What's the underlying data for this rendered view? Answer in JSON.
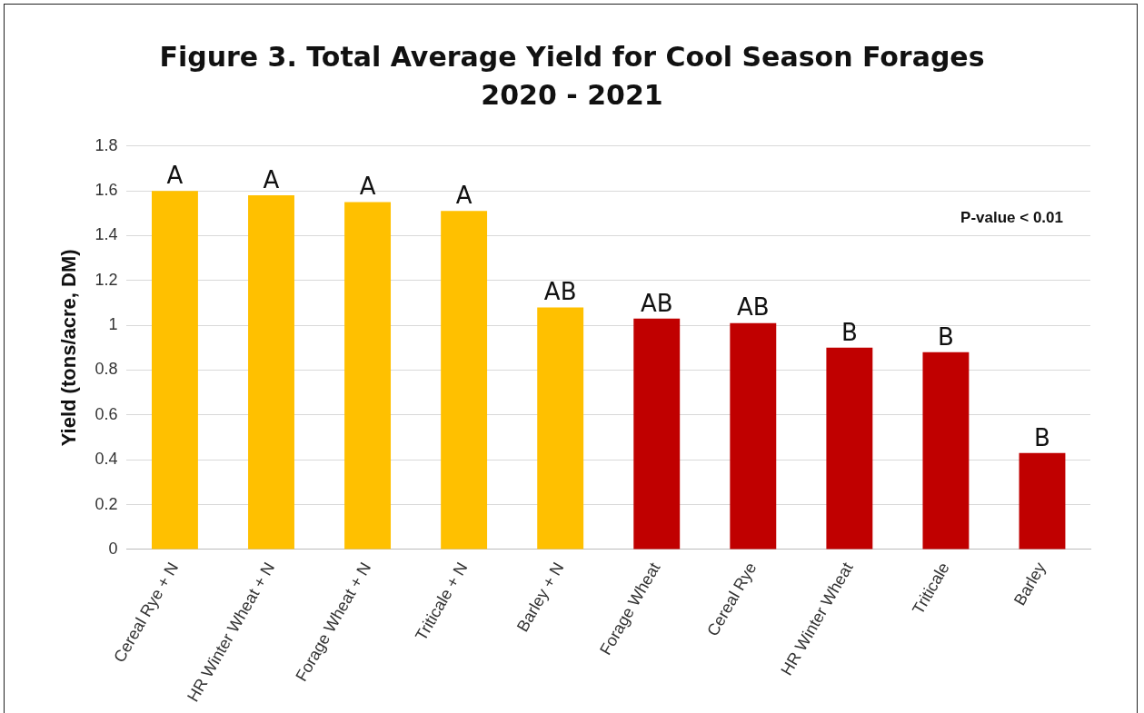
{
  "chart_data": {
    "type": "bar",
    "title": "Figure 3. Total Average Yield for Cool Season Forages\n2020 - 2021",
    "ylabel": "Yield (tons/acre, DM)",
    "categories": [
      "Cereal Rye + N",
      "HR Winter Wheat + N",
      "Forage Wheat + N",
      "Triticale + N",
      "Barley + N",
      "Forage Wheat",
      "Cereal Rye",
      "HR Winter Wheat",
      "Triticale",
      "Barley"
    ],
    "values": [
      1.6,
      1.58,
      1.55,
      1.51,
      1.08,
      1.03,
      1.01,
      0.9,
      0.88,
      0.43
    ],
    "colors": [
      "#ffc000",
      "#ffc000",
      "#ffc000",
      "#ffc000",
      "#ffc000",
      "#c00000",
      "#c00000",
      "#c00000",
      "#c00000",
      "#c00000"
    ],
    "ylim": [
      0,
      1.8
    ],
    "yticks": [
      0,
      0.2,
      0.4,
      0.6,
      0.8,
      1,
      1.2,
      1.4,
      1.6,
      1.8
    ],
    "grid": "y",
    "legend": false,
    "annotations": [
      {
        "text": "A",
        "x": "Cereal Rye + N",
        "y": 1.6
      },
      {
        "text": "A",
        "x": "HR Winter Wheat + N",
        "y": 1.58
      },
      {
        "text": "A",
        "x": "Forage Wheat + N",
        "y": 1.55
      },
      {
        "text": "A",
        "x": "Triticale + N",
        "y": 1.51
      },
      {
        "text": "AB",
        "x": "Barley + N",
        "y": 1.08
      },
      {
        "text": "AB",
        "x": "Forage Wheat",
        "y": 1.03
      },
      {
        "text": "AB",
        "x": "Cereal Rye",
        "y": 1.01
      },
      {
        "text": "B",
        "x": "HR Winter Wheat",
        "y": 0.9
      },
      {
        "text": "B",
        "x": "Triticale",
        "y": 0.88
      },
      {
        "text": "B",
        "x": "Barley",
        "y": 0.43
      },
      "P-value < 0.01"
    ]
  }
}
